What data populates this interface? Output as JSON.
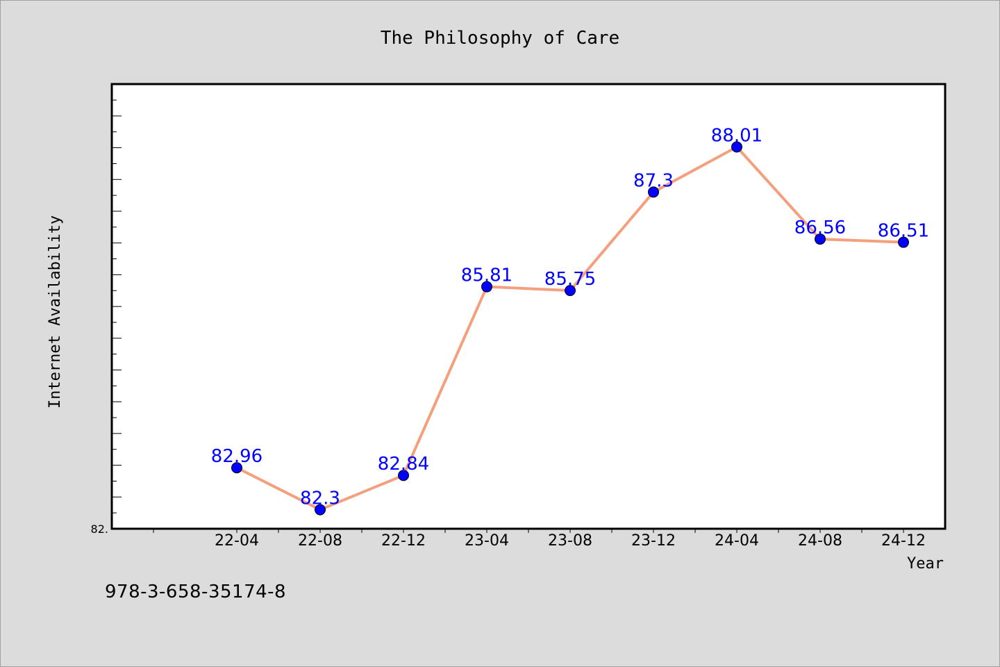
{
  "isbn": "978-3-658-35174-8",
  "colors": {
    "background": "#dcdcdc",
    "plot_area": "#ffffff",
    "line": "#f4a07f",
    "marker": "#0000ff",
    "data_label": "#0000ff",
    "axis": "#000000"
  },
  "chart_data": {
    "type": "line",
    "title": "The Philosophy of Care",
    "xlabel": "Year",
    "ylabel": "Internet Availability",
    "categories": [
      "22-04",
      "22-08",
      "22-12",
      "23-04",
      "23-08",
      "23-12",
      "24-04",
      "24-08",
      "24-12"
    ],
    "series": [
      {
        "values": [
          82.96,
          82.3,
          82.84,
          85.81,
          85.75,
          87.3,
          88.01,
          86.56,
          86.51
        ],
        "data_labels": [
          "82.96",
          "82.3",
          "82.84",
          "85.81",
          "85.75",
          "87.3",
          "88.01",
          "86.56",
          "86.51"
        ]
      }
    ],
    "y_tick_labels": [
      "82."
    ],
    "ylim": [
      82.0,
      89.0
    ],
    "grid": false,
    "legend": "none"
  }
}
